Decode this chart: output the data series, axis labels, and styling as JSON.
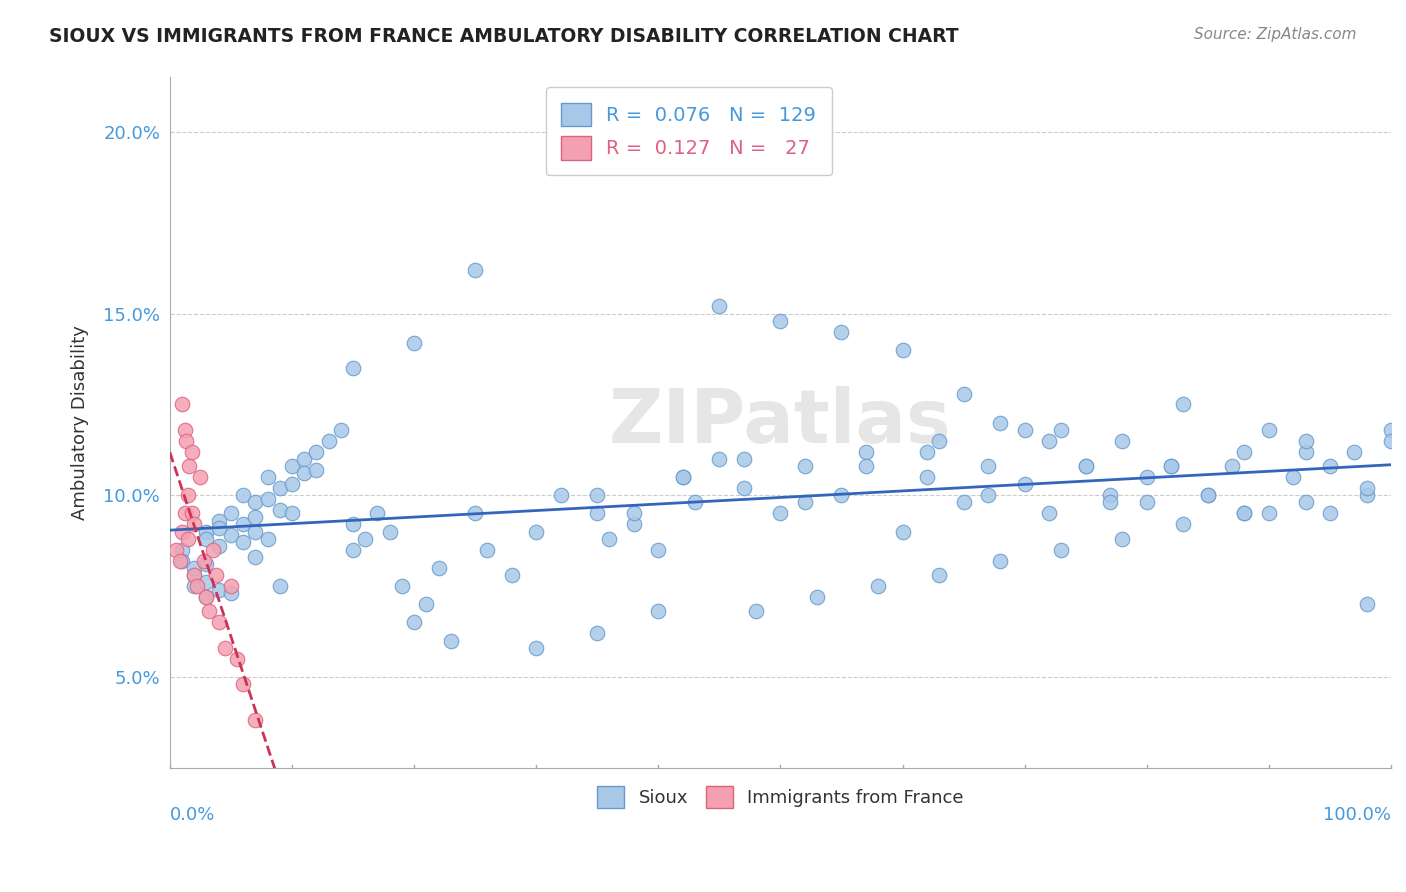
{
  "title": "SIOUX VS IMMIGRANTS FROM FRANCE AMBULATORY DISABILITY CORRELATION CHART",
  "source": "Source: ZipAtlas.com",
  "ylabel": "Ambulatory Disability",
  "yticks": [
    0.05,
    0.1,
    0.15,
    0.2
  ],
  "ytick_labels": [
    "5.0%",
    "10.0%",
    "15.0%",
    "20.0%"
  ],
  "xlim": [
    0,
    1
  ],
  "ylim": [
    0.025,
    0.215
  ],
  "series1_color": "#a8c8e8",
  "series2_color": "#f4a0b0",
  "series1_edge": "#6699cc",
  "series2_edge": "#e06080",
  "trendline1_color": "#3366bb",
  "trendline2_color": "#cc3355",
  "watermark": "ZIPatlas",
  "background_color": "#ffffff",
  "grid_color": "#cccccc",
  "sioux_x": [
    0.01,
    0.01,
    0.02,
    0.02,
    0.02,
    0.03,
    0.03,
    0.03,
    0.03,
    0.04,
    0.04,
    0.04,
    0.05,
    0.05,
    0.05,
    0.06,
    0.06,
    0.06,
    0.07,
    0.07,
    0.07,
    0.08,
    0.08,
    0.09,
    0.09,
    0.1,
    0.1,
    0.11,
    0.11,
    0.12,
    0.12,
    0.13,
    0.14,
    0.15,
    0.15,
    0.16,
    0.17,
    0.18,
    0.19,
    0.2,
    0.21,
    0.22,
    0.23,
    0.25,
    0.26,
    0.28,
    0.3,
    0.32,
    0.35,
    0.36,
    0.38,
    0.4,
    0.42,
    0.43,
    0.45,
    0.47,
    0.5,
    0.52,
    0.55,
    0.57,
    0.6,
    0.62,
    0.63,
    0.65,
    0.67,
    0.68,
    0.7,
    0.72,
    0.73,
    0.75,
    0.77,
    0.78,
    0.8,
    0.82,
    0.83,
    0.85,
    0.87,
    0.88,
    0.9,
    0.92,
    0.93,
    0.95,
    0.97,
    0.98,
    1.0,
    0.25,
    0.45,
    0.5,
    0.55,
    0.6,
    0.3,
    0.35,
    0.4,
    0.15,
    0.2,
    0.65,
    0.7,
    0.75,
    0.8,
    0.85,
    0.9,
    0.95,
    1.0,
    0.1,
    0.07,
    0.08,
    0.09,
    0.35,
    0.38,
    0.42,
    0.47,
    0.52,
    0.57,
    0.62,
    0.67,
    0.72,
    0.77,
    0.82,
    0.88,
    0.93,
    0.98,
    0.48,
    0.53,
    0.58,
    0.63,
    0.68,
    0.73,
    0.78,
    0.83,
    0.88,
    0.93,
    0.98,
    0.03,
    0.04
  ],
  "sioux_y": [
    0.085,
    0.082,
    0.078,
    0.08,
    0.075,
    0.09,
    0.088,
    0.072,
    0.076,
    0.093,
    0.086,
    0.074,
    0.095,
    0.089,
    0.073,
    0.1,
    0.087,
    0.092,
    0.098,
    0.094,
    0.083,
    0.105,
    0.099,
    0.102,
    0.096,
    0.108,
    0.103,
    0.11,
    0.106,
    0.112,
    0.107,
    0.115,
    0.118,
    0.085,
    0.092,
    0.088,
    0.095,
    0.09,
    0.075,
    0.065,
    0.07,
    0.08,
    0.06,
    0.095,
    0.085,
    0.078,
    0.09,
    0.1,
    0.095,
    0.088,
    0.092,
    0.085,
    0.105,
    0.098,
    0.11,
    0.102,
    0.095,
    0.108,
    0.1,
    0.112,
    0.09,
    0.105,
    0.115,
    0.098,
    0.108,
    0.12,
    0.103,
    0.095,
    0.118,
    0.108,
    0.1,
    0.115,
    0.098,
    0.108,
    0.125,
    0.1,
    0.108,
    0.095,
    0.118,
    0.105,
    0.112,
    0.095,
    0.112,
    0.1,
    0.118,
    0.162,
    0.152,
    0.148,
    0.145,
    0.14,
    0.058,
    0.062,
    0.068,
    0.135,
    0.142,
    0.128,
    0.118,
    0.108,
    0.105,
    0.1,
    0.095,
    0.108,
    0.115,
    0.095,
    0.09,
    0.088,
    0.075,
    0.1,
    0.095,
    0.105,
    0.11,
    0.098,
    0.108,
    0.112,
    0.1,
    0.115,
    0.098,
    0.108,
    0.112,
    0.115,
    0.07,
    0.068,
    0.072,
    0.075,
    0.078,
    0.082,
    0.085,
    0.088,
    0.092,
    0.095,
    0.098,
    0.102,
    0.081,
    0.091
  ],
  "france_x": [
    0.005,
    0.008,
    0.01,
    0.01,
    0.012,
    0.012,
    0.013,
    0.015,
    0.015,
    0.016,
    0.018,
    0.018,
    0.02,
    0.02,
    0.022,
    0.025,
    0.028,
    0.03,
    0.032,
    0.035,
    0.038,
    0.04,
    0.045,
    0.05,
    0.055,
    0.06,
    0.07
  ],
  "france_y": [
    0.085,
    0.082,
    0.125,
    0.09,
    0.118,
    0.095,
    0.115,
    0.1,
    0.088,
    0.108,
    0.112,
    0.095,
    0.078,
    0.092,
    0.075,
    0.105,
    0.082,
    0.072,
    0.068,
    0.085,
    0.078,
    0.065,
    0.058,
    0.075,
    0.055,
    0.048,
    0.038
  ]
}
